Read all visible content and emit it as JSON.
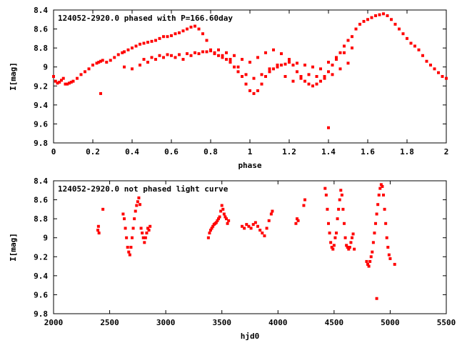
{
  "chart_data": [
    {
      "type": "scatter",
      "title": "124052-2920.0 phased with P=166.60day",
      "xlabel": "phase",
      "ylabel": "I[mag]",
      "xlim": [
        0,
        2
      ],
      "ylim": [
        8.4,
        9.8
      ],
      "y_inverted": true,
      "grid": false,
      "xticks": [
        "0",
        "0.2",
        "0.4",
        "0.6",
        "0.8",
        "1",
        "1.2",
        "1.4",
        "1.6",
        "1.8",
        "2"
      ],
      "yticks": [
        "8.4",
        "8.6",
        "8.8",
        "9",
        "9.2",
        "9.4",
        "9.6",
        "9.8"
      ],
      "marker_color": "#ff0000",
      "x": [
        0.0,
        0.01,
        0.02,
        0.03,
        0.04,
        0.05,
        0.06,
        0.07,
        0.08,
        0.09,
        0.1,
        0.12,
        0.14,
        0.16,
        0.18,
        0.2,
        0.22,
        0.23,
        0.24,
        0.25,
        0.27,
        0.29,
        0.31,
        0.33,
        0.35,
        0.36,
        0.38,
        0.4,
        0.42,
        0.44,
        0.46,
        0.48,
        0.5,
        0.52,
        0.54,
        0.56,
        0.58,
        0.6,
        0.62,
        0.64,
        0.66,
        0.68,
        0.7,
        0.72,
        0.74,
        0.76,
        0.78,
        0.8,
        0.82,
        0.84,
        0.86,
        0.88,
        0.9,
        0.92,
        0.94,
        0.96,
        0.98,
        1.0,
        1.02,
        1.04,
        1.06,
        1.08,
        1.1,
        1.12,
        1.14,
        1.16,
        1.18,
        1.2,
        1.22,
        1.24,
        1.26,
        1.28,
        1.3,
        1.32,
        1.34,
        1.36,
        1.38,
        1.4,
        1.42,
        1.44,
        1.46,
        1.48,
        1.5,
        1.52,
        1.54,
        1.56,
        1.58,
        1.6,
        1.62,
        1.64,
        1.66,
        1.68,
        1.7,
        1.72,
        1.74,
        1.76,
        1.78,
        1.8,
        1.82,
        1.84,
        1.86,
        1.88,
        1.9,
        1.92,
        1.94,
        1.96,
        1.98,
        2.0,
        0.36,
        0.4,
        0.44,
        0.48,
        0.52,
        0.56,
        0.6,
        0.64,
        0.68,
        0.72,
        0.76,
        0.8,
        0.84,
        0.88,
        0.92,
        0.96,
        1.0,
        1.04,
        1.08,
        1.12,
        1.16,
        1.2,
        1.24,
        1.28,
        1.32,
        1.36,
        1.4,
        1.44,
        1.48,
        1.52,
        0.46,
        0.5,
        0.54,
        0.58,
        0.62,
        0.66,
        0.7,
        0.74,
        0.78,
        0.82,
        0.86,
        0.9,
        0.94,
        0.98,
        1.02,
        1.06,
        1.1,
        1.14,
        1.18,
        1.22,
        1.26,
        1.3,
        1.34,
        1.38,
        1.42,
        1.46,
        1.5,
        0.24,
        1.4
      ],
      "y": [
        9.1,
        9.15,
        9.17,
        9.16,
        9.14,
        9.12,
        9.18,
        9.18,
        9.17,
        9.16,
        9.15,
        9.12,
        9.08,
        9.05,
        9.02,
        8.98,
        8.96,
        8.95,
        8.94,
        8.93,
        8.95,
        8.93,
        8.9,
        8.87,
        8.85,
        8.84,
        8.82,
        8.8,
        8.78,
        8.76,
        8.75,
        8.74,
        8.73,
        8.72,
        8.7,
        8.68,
        8.68,
        8.67,
        8.65,
        8.64,
        8.62,
        8.6,
        8.58,
        8.57,
        8.6,
        8.65,
        8.72,
        8.82,
        8.85,
        8.88,
        8.9,
        8.92,
        8.95,
        9.0,
        9.05,
        9.1,
        9.18,
        9.25,
        9.28,
        9.25,
        9.18,
        9.1,
        9.05,
        9.02,
        9.0,
        8.98,
        8.97,
        8.95,
        8.98,
        9.05,
        9.1,
        9.15,
        9.18,
        9.2,
        9.18,
        9.15,
        9.1,
        9.05,
        8.98,
        8.92,
        8.85,
        8.78,
        8.72,
        8.68,
        8.6,
        8.55,
        8.52,
        8.5,
        8.48,
        8.46,
        8.45,
        8.44,
        8.46,
        8.5,
        8.55,
        8.6,
        8.65,
        8.7,
        8.75,
        8.78,
        8.82,
        8.88,
        8.94,
        8.98,
        9.02,
        9.06,
        9.1,
        9.12,
        9.0,
        9.02,
        8.98,
        8.95,
        8.92,
        8.9,
        8.88,
        8.87,
        8.86,
        8.85,
        8.84,
        8.83,
        8.82,
        8.85,
        8.88,
        8.92,
        8.95,
        8.9,
        8.85,
        8.82,
        8.86,
        8.92,
        8.96,
        8.98,
        9.0,
        9.02,
        8.95,
        8.9,
        8.85,
        8.8,
        8.92,
        8.9,
        8.88,
        8.87,
        8.9,
        8.92,
        8.88,
        8.86,
        8.84,
        8.86,
        8.88,
        8.92,
        9.0,
        9.08,
        9.12,
        9.08,
        9.02,
        8.98,
        9.1,
        9.15,
        9.12,
        9.08,
        9.1,
        9.12,
        9.08,
        9.02,
        8.96,
        9.28,
        9.64
      ]
    },
    {
      "type": "scatter",
      "title": "124052-2920.0 not phased light curve",
      "xlabel": "hjd0",
      "ylabel": "I[mag]",
      "xlim": [
        2000,
        5500
      ],
      "ylim": [
        8.4,
        9.8
      ],
      "y_inverted": true,
      "grid": false,
      "xticks": [
        "2000",
        "2500",
        "3000",
        "3500",
        "4000",
        "4500",
        "5000",
        "5500"
      ],
      "yticks": [
        "8.4",
        "8.6",
        "8.8",
        "9",
        "9.2",
        "9.4",
        "9.6",
        "9.8"
      ],
      "marker_color": "#ff0000",
      "x": [
        2395,
        2400,
        2405,
        2440,
        2620,
        2630,
        2640,
        2650,
        2660,
        2670,
        2680,
        2690,
        2700,
        2710,
        2720,
        2730,
        2740,
        2750,
        2760,
        2770,
        2780,
        2790,
        2800,
        2810,
        2820,
        2830,
        2840,
        2850,
        2860,
        3380,
        3390,
        3400,
        3410,
        3420,
        3430,
        3440,
        3450,
        3460,
        3470,
        3480,
        3490,
        3500,
        3510,
        3520,
        3530,
        3540,
        3550,
        3560,
        3680,
        3700,
        3720,
        3740,
        3760,
        3780,
        3800,
        3820,
        3840,
        3860,
        3880,
        3900,
        3920,
        3940,
        3950,
        4160,
        4170,
        4180,
        4230,
        4240,
        4420,
        4430,
        4440,
        4450,
        4460,
        4470,
        4480,
        4490,
        4500,
        4510,
        4520,
        4530,
        4540,
        4550,
        4560,
        4570,
        4580,
        4590,
        4600,
        4610,
        4620,
        4630,
        4640,
        4650,
        4660,
        4670,
        4680,
        4790,
        4800,
        4810,
        4820,
        4830,
        4840,
        4850,
        4860,
        4870,
        4880,
        4890,
        4900,
        4910,
        4920,
        4930,
        4940,
        4950,
        4960,
        4970,
        4980,
        4990,
        5000,
        5040,
        4880
      ],
      "y": [
        8.92,
        8.88,
        8.95,
        8.7,
        8.75,
        8.8,
        8.9,
        9.0,
        9.1,
        9.15,
        9.18,
        9.1,
        9.0,
        8.9,
        8.8,
        8.72,
        8.66,
        8.62,
        8.58,
        8.65,
        8.9,
        8.95,
        9.0,
        9.05,
        9.0,
        8.95,
        8.9,
        8.92,
        8.88,
        9.0,
        8.95,
        8.92,
        8.9,
        8.88,
        8.86,
        8.85,
        8.84,
        8.82,
        8.8,
        8.78,
        8.72,
        8.66,
        8.7,
        8.75,
        8.78,
        8.8,
        8.85,
        8.82,
        8.88,
        8.9,
        8.86,
        8.88,
        8.9,
        8.86,
        8.84,
        8.88,
        8.92,
        8.95,
        8.98,
        8.9,
        8.82,
        8.75,
        8.72,
        8.85,
        8.8,
        8.82,
        8.66,
        8.6,
        8.48,
        8.55,
        8.7,
        8.85,
        8.95,
        9.05,
        9.1,
        9.12,
        9.08,
        9.0,
        8.95,
        8.8,
        8.7,
        8.6,
        8.5,
        8.55,
        8.7,
        8.85,
        9.0,
        9.08,
        9.1,
        9.12,
        9.1,
        9.05,
        9.0,
        8.96,
        9.12,
        9.25,
        9.28,
        9.3,
        9.25,
        9.2,
        9.15,
        9.05,
        8.95,
        8.85,
        8.75,
        8.65,
        8.55,
        8.48,
        8.44,
        8.46,
        8.55,
        8.7,
        8.85,
        9.0,
        9.1,
        9.18,
        9.22,
        9.28,
        9.64
      ]
    }
  ]
}
